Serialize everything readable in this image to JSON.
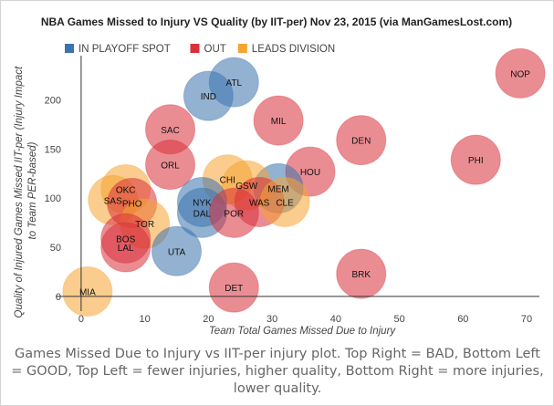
{
  "chart_data": {
    "type": "bubble",
    "title": "NBA Games Missed to Injury VS Quality (by IIT-per) Nov 23, 2015 (via ManGamesLost.com)",
    "xlabel": "Team Total Games Missed Due to Injury",
    "ylabel": "Quality of Injured Games Missed IIT-per (Injury Impact to Team PER-based)",
    "xlim": [
      -4,
      72
    ],
    "ylim": [
      -15,
      245
    ],
    "xticks": [
      0,
      10,
      20,
      30,
      40,
      50,
      60,
      70
    ],
    "yticks": [
      0,
      50,
      100,
      150,
      200
    ],
    "grid": false,
    "legend_position": "top-left",
    "series": [
      {
        "name": "IN PLAYOFF SPOT",
        "color": "#3a73ad"
      },
      {
        "name": "OUT",
        "color": "#d9303a"
      },
      {
        "name": "LEADS DIVISION",
        "color": "#f6a431"
      }
    ],
    "points": [
      {
        "label": "NOP",
        "x": 69,
        "y": 227,
        "group": "OUT"
      },
      {
        "label": "ATL",
        "x": 24,
        "y": 218,
        "group": "IN PLAYOFF SPOT"
      },
      {
        "label": "IND",
        "x": 20,
        "y": 204,
        "group": "IN PLAYOFF SPOT"
      },
      {
        "label": "MIL",
        "x": 31,
        "y": 179,
        "group": "OUT"
      },
      {
        "label": "SAC",
        "x": 14,
        "y": 170,
        "group": "OUT"
      },
      {
        "label": "DEN",
        "x": 44,
        "y": 159,
        "group": "OUT"
      },
      {
        "label": "PHI",
        "x": 62,
        "y": 139,
        "group": "OUT"
      },
      {
        "label": "ORL",
        "x": 14,
        "y": 134,
        "group": "OUT"
      },
      {
        "label": "HOU",
        "x": 36,
        "y": 127,
        "group": "OUT"
      },
      {
        "label": "CHI",
        "x": 23,
        "y": 119,
        "group": "LEADS DIVISION"
      },
      {
        "label": "MEM",
        "x": 31,
        "y": 110,
        "group": "IN PLAYOFF SPOT"
      },
      {
        "label": "GSW",
        "x": 26,
        "y": 113,
        "group": "LEADS DIVISION"
      },
      {
        "label": "OKC",
        "x": 7,
        "y": 109,
        "group": "LEADS DIVISION"
      },
      {
        "label": "SAS",
        "x": 5,
        "y": 98,
        "group": "LEADS DIVISION"
      },
      {
        "label": "PHO",
        "x": 8,
        "y": 95,
        "group": "OUT"
      },
      {
        "label": "NYK",
        "x": 19,
        "y": 96,
        "group": "IN PLAYOFF SPOT"
      },
      {
        "label": "WAS",
        "x": 28,
        "y": 96,
        "group": "OUT"
      },
      {
        "label": "CLE",
        "x": 32,
        "y": 96,
        "group": "LEADS DIVISION"
      },
      {
        "label": "DAL",
        "x": 19,
        "y": 85,
        "group": "IN PLAYOFF SPOT"
      },
      {
        "label": "POR",
        "x": 24,
        "y": 85,
        "group": "OUT"
      },
      {
        "label": "TOR",
        "x": 10,
        "y": 74,
        "group": "LEADS DIVISION"
      },
      {
        "label": "BOS",
        "x": 7,
        "y": 59,
        "group": "OUT"
      },
      {
        "label": "LAL",
        "x": 7,
        "y": 50,
        "group": "OUT"
      },
      {
        "label": "UTA",
        "x": 15,
        "y": 46,
        "group": "IN PLAYOFF SPOT"
      },
      {
        "label": "BRK",
        "x": 44,
        "y": 23,
        "group": "OUT"
      },
      {
        "label": "DET",
        "x": 24,
        "y": 9,
        "group": "OUT"
      },
      {
        "label": "MIA",
        "x": 1,
        "y": 5,
        "group": "LEADS DIVISION"
      }
    ]
  },
  "caption": "Games Missed Due to Injury vs IIT-per injury plot. Top Right = BAD, Bottom Left = GOOD, Top Left = fewer injuries, higher quality, Bottom Right = more injuries, lower quality."
}
